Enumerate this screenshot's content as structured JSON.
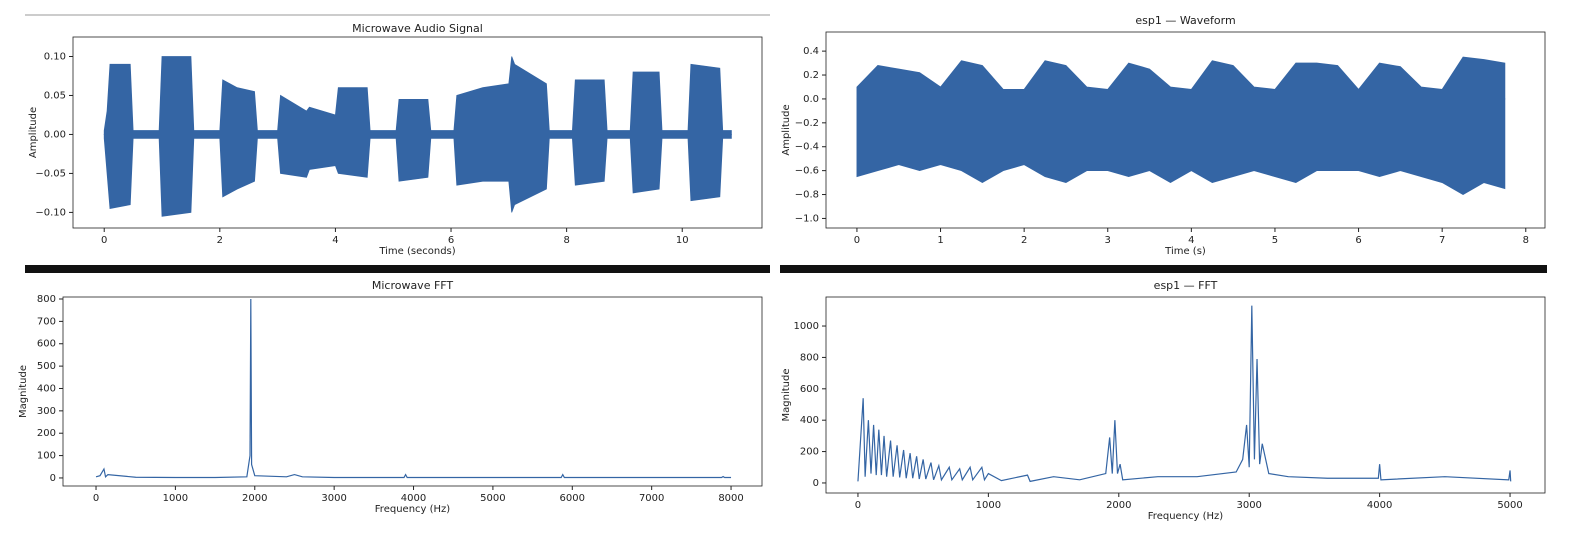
{
  "chart_data": [
    {
      "type": "area",
      "title": "Microwave Audio Signal",
      "xlabel": "Time (seconds)",
      "ylabel": "Amplitude",
      "color": "#3465a4",
      "x": [
        0,
        0.05,
        0.1,
        0.45,
        0.5,
        0.95,
        1.0,
        1.5,
        1.55,
        2.0,
        2.05,
        2.3,
        2.6,
        2.65,
        3.0,
        3.05,
        3.5,
        3.55,
        4.0,
        4.05,
        4.55,
        4.6,
        5.05,
        5.1,
        5.6,
        5.65,
        6.05,
        6.1,
        6.55,
        7.0,
        7.05,
        7.1,
        7.65,
        7.7,
        8.1,
        8.15,
        8.65,
        8.7,
        9.1,
        9.15,
        9.6,
        9.65,
        10.1,
        10.15,
        10.65,
        10.7,
        10.85
      ],
      "series": [
        {
          "values": [
            0.005,
            0.03,
            0.09,
            0.09,
            0.005,
            0.005,
            0.1,
            0.1,
            0.005,
            0.005,
            0.07,
            0.06,
            0.055,
            0.005,
            0.005,
            0.05,
            0.03,
            0.035,
            0.025,
            0.06,
            0.06,
            0.005,
            0.005,
            0.045,
            0.045,
            0.005,
            0.005,
            0.05,
            0.06,
            0.065,
            0.1,
            0.09,
            0.065,
            0.005,
            0.005,
            0.07,
            0.07,
            0.005,
            0.005,
            0.08,
            0.08,
            0.005,
            0.005,
            0.09,
            0.085,
            0.005,
            0.005
          ]
        },
        {
          "values": [
            -0.005,
            -0.05,
            -0.095,
            -0.09,
            -0.005,
            -0.005,
            -0.105,
            -0.1,
            -0.005,
            -0.005,
            -0.08,
            -0.07,
            -0.06,
            -0.005,
            -0.005,
            -0.05,
            -0.055,
            -0.045,
            -0.04,
            -0.05,
            -0.055,
            -0.005,
            -0.005,
            -0.06,
            -0.055,
            -0.005,
            -0.005,
            -0.065,
            -0.06,
            -0.06,
            -0.1,
            -0.09,
            -0.07,
            -0.005,
            -0.005,
            -0.065,
            -0.06,
            -0.005,
            -0.005,
            -0.075,
            -0.07,
            -0.005,
            -0.005,
            -0.085,
            -0.08,
            -0.005,
            -0.005
          ]
        }
      ],
      "xlim": [
        -0.54,
        11.38
      ],
      "ylim": [
        -0.12,
        0.125
      ],
      "xticks": [
        0,
        2,
        4,
        6,
        8,
        10
      ],
      "yticks": [
        {
          "value": -0.1,
          "label": "−0.10"
        },
        {
          "value": -0.05,
          "label": "−0.05"
        },
        {
          "value": 0,
          "label": "0.00"
        },
        {
          "value": 0.05,
          "label": "0.05"
        },
        {
          "value": 0.1,
          "label": "0.10"
        }
      ]
    },
    {
      "type": "area",
      "title": "esp1 — Waveform",
      "xlabel": "Time (s)",
      "ylabel": "Amplitude",
      "color": "#3465a4",
      "x": [
        0,
        0.25,
        0.5,
        0.75,
        1.0,
        1.25,
        1.5,
        1.75,
        2.0,
        2.25,
        2.5,
        2.75,
        3.0,
        3.25,
        3.5,
        3.75,
        4.0,
        4.25,
        4.5,
        4.75,
        5.0,
        5.25,
        5.5,
        5.75,
        6.0,
        6.25,
        6.5,
        6.75,
        7.0,
        7.25,
        7.5,
        7.75
      ],
      "series": [
        {
          "values": [
            0.1,
            0.28,
            0.25,
            0.22,
            0.1,
            0.32,
            0.28,
            0.08,
            0.08,
            0.32,
            0.28,
            0.1,
            0.08,
            0.3,
            0.25,
            0.1,
            0.08,
            0.32,
            0.28,
            0.1,
            0.08,
            0.3,
            0.3,
            0.28,
            0.08,
            0.3,
            0.27,
            0.1,
            0.08,
            0.35,
            0.33,
            0.3
          ]
        },
        {
          "values": [
            -0.65,
            -0.6,
            -0.55,
            -0.6,
            -0.55,
            -0.6,
            -0.7,
            -0.6,
            -0.55,
            -0.65,
            -0.7,
            -0.6,
            -0.6,
            -0.65,
            -0.6,
            -0.7,
            -0.6,
            -0.7,
            -0.65,
            -0.6,
            -0.65,
            -0.7,
            -0.6,
            -0.6,
            -0.6,
            -0.65,
            -0.6,
            -0.65,
            -0.7,
            -0.8,
            -0.7,
            -0.75
          ]
        }
      ],
      "xlim": [
        -0.37,
        8.23
      ],
      "ylim": [
        -1.08,
        0.56
      ],
      "xticks": [
        0,
        1,
        2,
        3,
        4,
        5,
        6,
        7,
        8
      ],
      "yticks": [
        {
          "value": -1.0,
          "label": "−1.0"
        },
        {
          "value": -0.8,
          "label": "−0.8"
        },
        {
          "value": -0.6,
          "label": "−0.6"
        },
        {
          "value": -0.4,
          "label": "−0.4"
        },
        {
          "value": -0.2,
          "label": "−0.2"
        },
        {
          "value": 0,
          "label": "0.0"
        },
        {
          "value": 0.2,
          "label": "0.2"
        },
        {
          "value": 0.4,
          "label": "0.4"
        }
      ]
    },
    {
      "type": "line",
      "title": "Microwave FFT",
      "xlabel": "Frequency (Hz)",
      "ylabel": "Magnitude",
      "color": "#3465a4",
      "x": [
        0,
        50,
        100,
        120,
        150,
        500,
        1000,
        1500,
        1900,
        1940,
        1950,
        1960,
        2000,
        2400,
        2500,
        2600,
        3000,
        3880,
        3900,
        3920,
        4500,
        5000,
        5860,
        5880,
        5900,
        6500,
        7000,
        7500,
        7880,
        7900,
        7920,
        8000
      ],
      "values": [
        5,
        10,
        40,
        5,
        15,
        3,
        2,
        2,
        5,
        100,
        800,
        60,
        10,
        5,
        15,
        5,
        2,
        2,
        15,
        2,
        2,
        2,
        2,
        15,
        2,
        2,
        2,
        2,
        2,
        6,
        2,
        2
      ],
      "xlim": [
        -416,
        8390
      ],
      "ylim": [
        -36,
        809
      ],
      "xticks": [
        0,
        1000,
        2000,
        3000,
        4000,
        5000,
        6000,
        7000,
        8000
      ],
      "yticks": [
        0,
        100,
        200,
        300,
        400,
        500,
        600,
        700,
        800
      ]
    },
    {
      "type": "line",
      "title": "esp1 — FFT",
      "xlabel": "Frequency (Hz)",
      "ylabel": "Magnitude",
      "color": "#3465a4",
      "x": [
        0,
        40,
        55,
        80,
        100,
        120,
        140,
        160,
        180,
        200,
        220,
        250,
        270,
        300,
        320,
        350,
        370,
        400,
        420,
        450,
        470,
        500,
        520,
        560,
        580,
        620,
        640,
        700,
        720,
        780,
        800,
        860,
        880,
        950,
        970,
        1000,
        1100,
        1300,
        1320,
        1500,
        1700,
        1900,
        1930,
        1950,
        1970,
        1990,
        2010,
        2030,
        2300,
        2600,
        2900,
        2950,
        2980,
        3000,
        3020,
        3040,
        3060,
        3080,
        3100,
        3150,
        3300,
        3600,
        3990,
        4000,
        4010,
        4500,
        4990,
        5000,
        5005
      ],
      "values": [
        10,
        540,
        40,
        400,
        60,
        370,
        50,
        340,
        50,
        300,
        40,
        270,
        40,
        240,
        35,
        210,
        30,
        190,
        30,
        170,
        25,
        150,
        25,
        130,
        20,
        110,
        20,
        100,
        20,
        90,
        20,
        100,
        20,
        100,
        20,
        60,
        15,
        50,
        10,
        40,
        20,
        60,
        290,
        60,
        400,
        60,
        120,
        20,
        40,
        40,
        70,
        150,
        370,
        100,
        1130,
        150,
        790,
        120,
        250,
        60,
        40,
        30,
        30,
        120,
        20,
        40,
        20,
        80,
        10
      ],
      "xlim": [
        -245,
        5268
      ],
      "ylim": [
        -64,
        1185
      ],
      "xticks": [
        0,
        1000,
        2000,
        3000,
        4000,
        5000
      ],
      "yticks": [
        0,
        200,
        400,
        600,
        800,
        1000
      ]
    }
  ]
}
